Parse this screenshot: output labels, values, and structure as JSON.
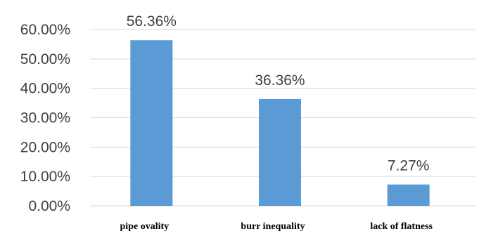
{
  "chart_data": {
    "type": "bar",
    "categories": [
      "pipe ovality",
      "burr inequality",
      "lack of flatness"
    ],
    "values": [
      56.36,
      36.36,
      7.27
    ],
    "value_labels": [
      "56.36%",
      "36.36%",
      "7.27%"
    ],
    "yticks": [
      0,
      10,
      20,
      30,
      40,
      50,
      60
    ],
    "ytick_labels": [
      "0.00%",
      "10.00%",
      "20.00%",
      "30.00%",
      "40.00%",
      "50.00%",
      "60.00%"
    ],
    "ylim": [
      0,
      60
    ],
    "grid": true,
    "legend": "none",
    "title": "",
    "xlabel": "",
    "ylabel": "",
    "colors": {
      "bar": "#5b9bd5",
      "grid": "#d9d9d9",
      "axis": "#d9d9d9",
      "text": "#404040"
    }
  }
}
